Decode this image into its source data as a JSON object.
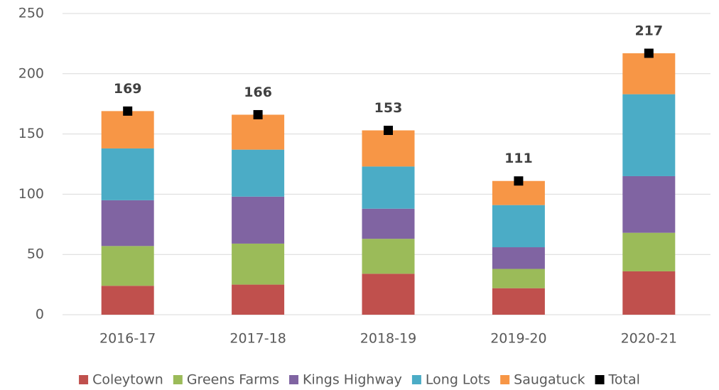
{
  "chart_data": {
    "type": "bar",
    "stacked": true,
    "categories": [
      "2016-17",
      "2017-18",
      "2018-19",
      "2019-20",
      "2020-21"
    ],
    "series": [
      {
        "name": "Coleytown",
        "color": "#c0504d",
        "values": [
          24,
          25,
          34,
          22,
          36
        ]
      },
      {
        "name": "Greens Farms",
        "color": "#9bbb59",
        "values": [
          33,
          34,
          29,
          16,
          32
        ]
      },
      {
        "name": "Kings Highway",
        "color": "#8064a2",
        "values": [
          38,
          39,
          25,
          18,
          47
        ]
      },
      {
        "name": "Long Lots",
        "color": "#4bacc6",
        "values": [
          43,
          39,
          35,
          35,
          68
        ]
      },
      {
        "name": "Saugatuck",
        "color": "#f79646",
        "values": [
          31,
          29,
          30,
          20,
          34
        ]
      },
      {
        "name": "Total",
        "color": "#000000",
        "type": "marker",
        "values": [
          169,
          166,
          153,
          111,
          217
        ]
      }
    ],
    "ylim": [
      0,
      250
    ],
    "yticks": [
      0,
      50,
      100,
      150,
      200,
      250
    ],
    "grid": true,
    "legend": "bottom"
  }
}
